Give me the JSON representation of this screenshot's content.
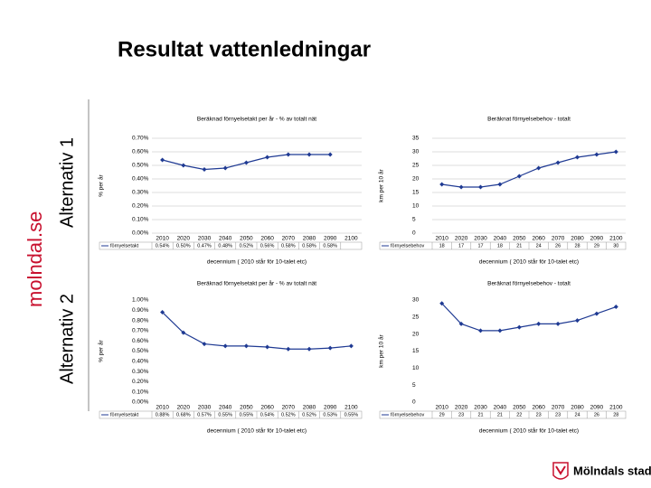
{
  "slide": {
    "title": "Resultat vattenledningar",
    "site": "molndal.se",
    "alt1": "Alternativ 1",
    "alt2": "Alternativ 2",
    "logo": "Mölndals stad"
  },
  "chart_data": [
    {
      "type": "line",
      "title": "Beräknad förnyelsetakt per år - % av totalt nät",
      "y_label": "% per år",
      "x_label": "decennium ( 2010 står för 10-talet etc)",
      "categories": [
        "2010",
        "2020",
        "2030",
        "2040",
        "2050",
        "2060",
        "2070",
        "2080",
        "2090",
        "2100"
      ],
      "series": [
        {
          "name": "förnyelsetakt",
          "color": "#1f3a93",
          "values": [
            0.54,
            0.5,
            0.47,
            0.48,
            0.52,
            0.56,
            0.58,
            0.58,
            0.58,
            null
          ],
          "value_labels": [
            "0.54%",
            "0.50%",
            "0.47%",
            "0.48%",
            "0.52%",
            "0.56%",
            "0.58%",
            "0.58%",
            "0.58%",
            null
          ]
        }
      ],
      "ylim": [
        0,
        0.7
      ],
      "yticks": [
        {
          "value": 0,
          "label": "0.00%"
        },
        {
          "value": 0.1,
          "label": "0.10%"
        },
        {
          "value": 0.2,
          "label": "0.20%"
        },
        {
          "value": 0.3,
          "label": "0.30%"
        },
        {
          "value": 0.4,
          "label": "0.40%"
        },
        {
          "value": 0.5,
          "label": "0.50%"
        },
        {
          "value": 0.6,
          "label": "0.60%"
        },
        {
          "value": 0.7,
          "label": "0.70%"
        }
      ],
      "grid": true
    },
    {
      "type": "line",
      "title": "Beräknat förnyelsebehov - totalt",
      "y_label": "km per 10 år",
      "x_label": "decennium ( 2010 står för 10-talet etc)",
      "categories": [
        "2010",
        "2020",
        "2030",
        "2040",
        "2050",
        "2060",
        "2070",
        "2080",
        "2090",
        "2100"
      ],
      "series": [
        {
          "name": "förnyelsebehov",
          "color": "#1f3a93",
          "values": [
            18,
            17,
            17,
            18,
            21,
            24,
            26,
            28,
            29,
            30
          ]
        }
      ],
      "ylim": [
        0,
        35
      ],
      "yticks": [
        0,
        5,
        10,
        15,
        20,
        25,
        30,
        35
      ],
      "grid": true
    },
    {
      "type": "line",
      "title": "Beräknad förnyelsetakt per år - % av totalt nät",
      "y_label": "% per år",
      "x_label": "decennium ( 2010 står för 10-talet etc)",
      "categories": [
        "2010",
        "2020",
        "2030",
        "2040",
        "2050",
        "2060",
        "2070",
        "2080",
        "2090",
        "2100"
      ],
      "series": [
        {
          "name": "förnyelsetakt",
          "color": "#1f3a93",
          "values": [
            0.88,
            0.68,
            0.57,
            0.55,
            0.55,
            0.54,
            0.52,
            0.52,
            0.53,
            0.55
          ],
          "value_labels": [
            "0.88%",
            "0.68%",
            "0.57%",
            "0.55%",
            "0.55%",
            "0.54%",
            "0.52%",
            "0.52%",
            "0.53%",
            "0.55%"
          ]
        }
      ],
      "ylim": [
        0,
        1.0
      ],
      "yticks": [
        {
          "value": 0,
          "label": "0.00%"
        },
        {
          "value": 0.1,
          "label": "0.10%"
        },
        {
          "value": 0.2,
          "label": "0.20%"
        },
        {
          "value": 0.3,
          "label": "0.30%"
        },
        {
          "value": 0.4,
          "label": "0.40%"
        },
        {
          "value": 0.5,
          "label": "0.50%"
        },
        {
          "value": 0.6,
          "label": "0.60%"
        },
        {
          "value": 0.7,
          "label": "0.70%"
        },
        {
          "value": 0.8,
          "label": "0.80%"
        },
        {
          "value": 0.9,
          "label": "0.90%"
        },
        {
          "value": 1.0,
          "label": "1.00%"
        }
      ],
      "grid": false
    },
    {
      "type": "line",
      "title": "Beräknat förnyelsebehov - totalt",
      "y_label": "km per 10 år",
      "x_label": "decennium ( 2010 står för 10-talet etc)",
      "categories": [
        "2010",
        "2020",
        "2030",
        "2040",
        "2050",
        "2060",
        "2070",
        "2080",
        "2090",
        "2100"
      ],
      "series": [
        {
          "name": "förnyelsebehov",
          "color": "#1f3a93",
          "values": [
            29,
            23,
            21,
            21,
            22,
            23,
            23,
            24,
            26,
            28
          ]
        }
      ],
      "ylim": [
        0,
        30
      ],
      "yticks": [
        0,
        5,
        10,
        15,
        20,
        25,
        30
      ],
      "grid": false
    }
  ]
}
